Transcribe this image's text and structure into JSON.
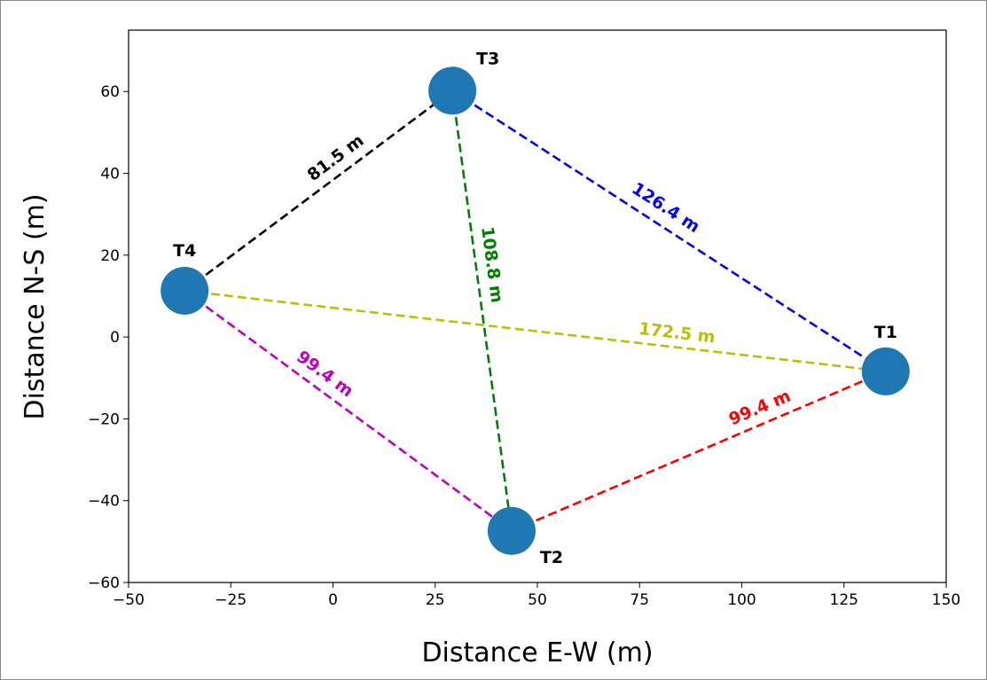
{
  "chart_data": {
    "type": "scatter",
    "title": "",
    "xlabel": "Distance E-W (m)",
    "ylabel": "Distance N-S (m)",
    "xlim": [
      -50,
      150
    ],
    "ylim": [
      -60,
      75
    ],
    "xticks": [
      -50,
      -25,
      0,
      25,
      50,
      75,
      100,
      125,
      150
    ],
    "xtick_labels": [
      "−50",
      "−25",
      "0",
      "25",
      "50",
      "75",
      "100",
      "125",
      "150"
    ],
    "yticks": [
      -60,
      -40,
      -20,
      0,
      20,
      40,
      60
    ],
    "ytick_labels": [
      "−60",
      "−40",
      "−20",
      "0",
      "20",
      "40",
      "60"
    ],
    "grid": false,
    "marker_color": "#1f77b4",
    "points": [
      {
        "name": "T1",
        "x": 135.2,
        "y": -8.4
      },
      {
        "name": "T2",
        "x": 43.7,
        "y": -47.4
      },
      {
        "name": "T3",
        "x": 29.2,
        "y": 60.2
      },
      {
        "name": "T4",
        "x": -36.3,
        "y": 11.3
      }
    ],
    "edges": [
      {
        "from": "T4",
        "to": "T3",
        "label": "81.5 m",
        "distance": 81.5,
        "color": "#000000"
      },
      {
        "from": "T3",
        "to": "T1",
        "label": "126.4 m",
        "distance": 126.4,
        "color": "#0000ff"
      },
      {
        "from": "T3",
        "to": "T2",
        "label": "108.8 m",
        "distance": 108.8,
        "color": "#008000"
      },
      {
        "from": "T4",
        "to": "T1",
        "label": "172.5 m",
        "distance": 172.5,
        "color": "#bfbf00"
      },
      {
        "from": "T4",
        "to": "T2",
        "label": "99.4 m",
        "distance": 99.4,
        "color": "#bf00bf"
      },
      {
        "from": "T2",
        "to": "T1",
        "label": "99.4 m",
        "distance": 99.4,
        "color": "#ff0000"
      }
    ]
  }
}
